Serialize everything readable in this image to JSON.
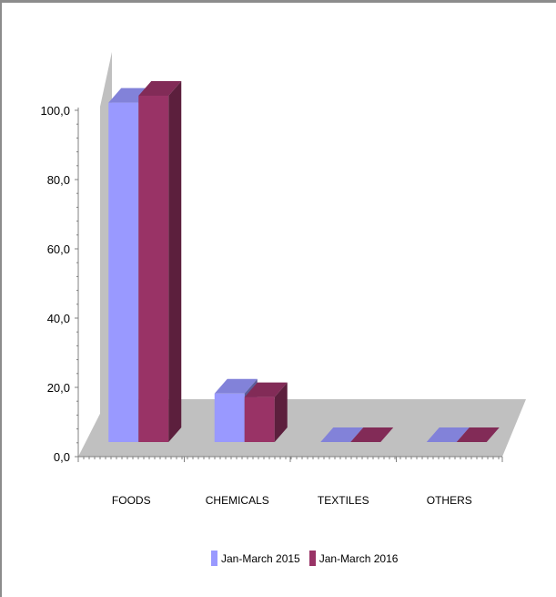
{
  "chart_data": {
    "type": "bar",
    "subtype": "3d-clustered-column",
    "categories": [
      "FOODS",
      "CHEMICALS",
      "TEXTILES",
      "OTHERS"
    ],
    "series": [
      {
        "name": "Jan-March 2015",
        "values": [
          98.0,
          14.0,
          0.0,
          0.0
        ],
        "color": "#9999ff"
      },
      {
        "name": "Jan-March 2016",
        "values": [
          100.0,
          13.0,
          0.0,
          0.0
        ],
        "color": "#993366"
      }
    ],
    "y_ticks": [
      "0,0",
      "20,0",
      "40,0",
      "60,0",
      "80,0",
      "100,0"
    ],
    "ylim": [
      0,
      100
    ],
    "title": "",
    "xlabel": "",
    "ylabel": "",
    "legend_position": "bottom",
    "gridlines": false
  },
  "legend": {
    "items": [
      "Jan-March 2015",
      "Jan-March 2016"
    ]
  }
}
